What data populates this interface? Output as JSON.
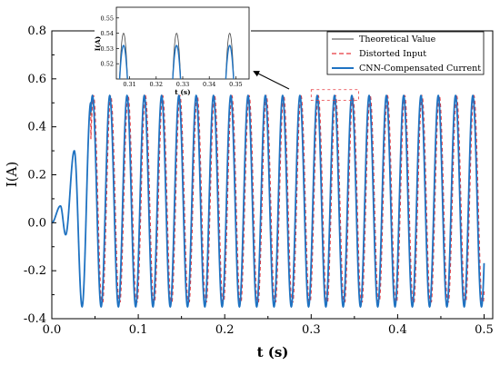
{
  "chart_data": [
    {
      "type": "line",
      "title": "",
      "xlabel": "t (s)",
      "ylabel": "I(A)",
      "xlim": [
        0.0,
        0.51
      ],
      "ylim": [
        -0.4,
        0.8
      ],
      "x_ticks": [
        "0.0",
        "0.1",
        "0.2",
        "0.3",
        "0.4",
        "0.5"
      ],
      "y_ticks": [
        "-0.4",
        "-0.2",
        "0.0",
        "0.2",
        "0.4",
        "0.6",
        "0.8"
      ],
      "grid": false,
      "legend_position": "top-right",
      "series": [
        {
          "name": "Theoretical Value",
          "color": "#444444",
          "style": "solid",
          "amplitude": 0.44,
          "offset": 0.09,
          "period_s": 0.02,
          "time_range": [
            0.045,
            0.5
          ]
        },
        {
          "name": "Distorted Input",
          "color": "#e8383d",
          "style": "dashed",
          "amplitude": 0.44,
          "offset": 0.09,
          "period_s": 0.02,
          "time_range": [
            0.0,
            0.5
          ]
        },
        {
          "name": "CNN-Compensated Current",
          "color": "#1f73c2",
          "style": "solid",
          "amplitude": 0.44,
          "offset": 0.09,
          "period_s": 0.02,
          "time_range": [
            0.0,
            0.5
          ]
        }
      ],
      "startup_transient": {
        "points": [
          [
            0.0,
            0.0
          ],
          [
            0.01,
            0.07
          ],
          [
            0.016,
            -0.05
          ],
          [
            0.026,
            0.3
          ],
          [
            0.035,
            -0.35
          ],
          [
            0.045,
            0.5
          ]
        ]
      },
      "zoom_region": {
        "x": [
          0.3,
          0.355
        ],
        "y": [
          0.51,
          0.555
        ]
      }
    },
    {
      "type": "line",
      "title": "",
      "xlabel": "t (s)",
      "ylabel": "I(A)",
      "xlim": [
        0.305,
        0.355
      ],
      "ylim": [
        0.51,
        0.557
      ],
      "x_ticks": [
        "0.31",
        "0.32",
        "0.33",
        "0.34",
        "0.35"
      ],
      "y_ticks": [
        "0.52",
        "0.53",
        "0.54",
        "0.55"
      ],
      "peaks": [
        {
          "t": 0.3077,
          "theoretical": 0.54,
          "compensated": 0.532
        },
        {
          "t": 0.3277,
          "theoretical": 0.54,
          "compensated": 0.532
        },
        {
          "t": 0.3477,
          "theoretical": 0.54,
          "compensated": 0.532
        }
      ]
    }
  ]
}
